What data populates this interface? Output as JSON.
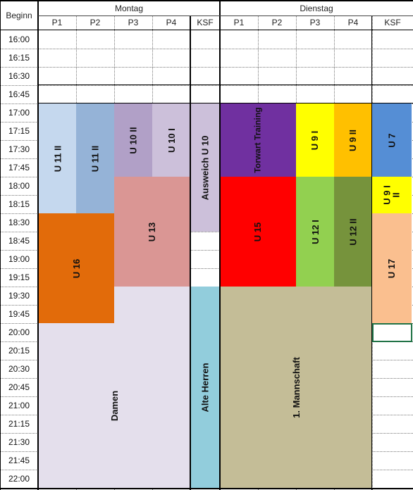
{
  "header": {
    "corner": "Beginn",
    "days": [
      {
        "label": "Montag",
        "cols": [
          "P1",
          "P2",
          "P3",
          "P4",
          "KSF"
        ]
      },
      {
        "label": "Dienstag",
        "cols": [
          "P1",
          "P2",
          "P3",
          "P4",
          "KSF"
        ]
      }
    ]
  },
  "times": [
    "16:00",
    "16:15",
    "16:30",
    "16:45",
    "17:00",
    "17:15",
    "17:30",
    "17:45",
    "18:00",
    "18:15",
    "18:30",
    "18:45",
    "19:00",
    "19:15",
    "19:30",
    "19:45",
    "20:00",
    "20:15",
    "20:30",
    "20:45",
    "21:00",
    "21:15",
    "21:30",
    "21:45",
    "22:00"
  ],
  "blocks": [
    {
      "name": "mo-p1-u11-ii",
      "label": "U 11 II",
      "color": "#c5d8ee"
    },
    {
      "name": "mo-p2-u11-ii",
      "label": "U 11 II",
      "color": "#95b3d7"
    },
    {
      "name": "mo-p3-u10-ii",
      "label": "U 10 II",
      "color": "#b1a0c7"
    },
    {
      "name": "mo-p4-u10-i",
      "label": "U 10 I",
      "color": "#ccc0da"
    },
    {
      "name": "mo-ksf-ausweich-u10",
      "label": "Ausweich U 10",
      "color": "#ccc0da"
    },
    {
      "name": "mo-p34-u13",
      "label": "U 13",
      "color": "#da9694"
    },
    {
      "name": "mo-p12-u16",
      "label": "U 16",
      "color": "#e26b0a"
    },
    {
      "name": "mo-damen",
      "label": "Damen",
      "color": "#e4dfec"
    },
    {
      "name": "mo-ksf-alte-herren",
      "label": "Alte Herren",
      "color": "#92cddc"
    },
    {
      "name": "di-p12-torwart",
      "label": "Torwart Training",
      "color": "#7030a0"
    },
    {
      "name": "di-p3-u9-i",
      "label": "U 9 I",
      "color": "#ffff00"
    },
    {
      "name": "di-p4-u9-ii",
      "label": "U 9 II",
      "color": "#ffc000"
    },
    {
      "name": "di-ksf-u7",
      "label": "U 7",
      "color": "#558ed5"
    },
    {
      "name": "di-ksf-u9-i-ii",
      "label": "U 9 I\nII",
      "color": "#ffff00"
    },
    {
      "name": "di-p12-u15",
      "label": "U 15",
      "color": "#ff0000"
    },
    {
      "name": "di-p3-u12-i",
      "label": "U 12 I",
      "color": "#92d050"
    },
    {
      "name": "di-p4-u12-ii",
      "label": "U 12 II",
      "color": "#76933c"
    },
    {
      "name": "di-ksf-u17",
      "label": "U 17",
      "color": "#fabf8f"
    },
    {
      "name": "di-mannschaft",
      "label": "1. Mannschaft",
      "color": "#c4bd97"
    }
  ]
}
